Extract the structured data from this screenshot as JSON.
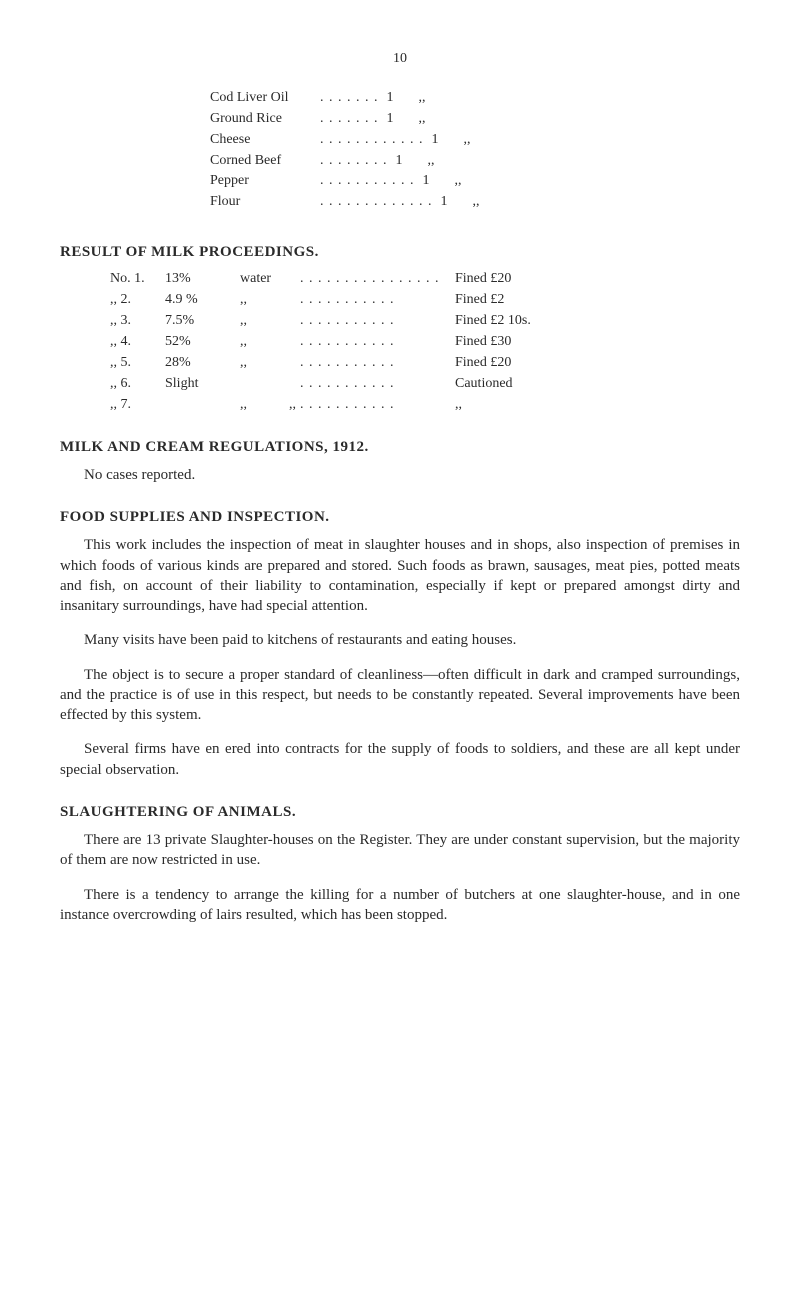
{
  "page_number": "10",
  "top_items": [
    {
      "name": "Cod Liver Oil",
      "dots": ". . . . . . .",
      "qty": "1",
      "ditto": ",,"
    },
    {
      "name": "Ground Rice",
      "dots": ". . . . . . .",
      "qty": "1",
      "ditto": ",,"
    },
    {
      "name": "Cheese",
      "dots": ". . . . . . . . . . . .",
      "qty": "1",
      "ditto": ",,"
    },
    {
      "name": "Corned Beef",
      "dots": ". . . . . . . .",
      "qty": "1",
      "ditto": ",,"
    },
    {
      "name": "Pepper",
      "dots": ". . . . . . . . . . .",
      "qty": "1",
      "ditto": ",,"
    },
    {
      "name": "Flour",
      "dots": ". . . . . . . . . . . . .",
      "qty": "1",
      "ditto": ",,"
    }
  ],
  "sections": {
    "milk_proceedings": {
      "header": "RESULT OF MILK PROCEEDINGS.",
      "rows": [
        {
          "no": "No. 1.",
          "pct": "13%",
          "word": "water",
          "dots": ". . . . . . . . . . . . . . . .",
          "result": "Fined £20"
        },
        {
          "no": ",, 2.",
          "pct": "4.9 %",
          "word": ",,",
          "dots": ". . . . . . . . . . .",
          "result": "Fined £2"
        },
        {
          "no": ",, 3.",
          "pct": "7.5%",
          "word": ",,",
          "dots": ". . . . . . . . . . .",
          "result": "Fined £2 10s."
        },
        {
          "no": ",, 4.",
          "pct": "52%",
          "word": ",,",
          "dots": ". . . . . . . . . . .",
          "result": "Fined £30"
        },
        {
          "no": ",, 5.",
          "pct": "28%",
          "word": ",,",
          "dots": ". . . . . . . . . . .",
          "result": "Fined £20"
        },
        {
          "no": ",, 6.",
          "pct": "Slight",
          "word": "",
          "dots": ". . . . . . . . . . .",
          "result": "Cautioned"
        },
        {
          "no": ",, 7.",
          "pct": "",
          "word": ",,            ,,",
          "dots": ". . . . . . . . . . .",
          "result": ",,"
        }
      ]
    },
    "milk_cream": {
      "header": "MILK AND CREAM REGULATIONS, 1912.",
      "text": "No cases reported."
    },
    "food_supplies": {
      "header": "FOOD SUPPLIES AND INSPECTION.",
      "p1": "This work includes the inspection of meat in slaughter houses and in shops, also inspection of premises in which foods of various kinds are prepared and stored. Such foods as brawn, sausages, meat pies, potted meats and fish, on account of their liability to contamination, especially if kept or prepared amongst dirty and insanitary surroundings, have had special attention.",
      "p2": "Many visits have been paid to kitchens of restaurants and eating houses.",
      "p3": "The object is to secure a proper standard of cleanliness—often difficult in dark and cramped surroundings, and the practice is of use in this respect, but needs to be constantly repeated. Several improvements have been effected by this system.",
      "p4": "Several firms have en ered into contracts for the supply of foods to soldiers, and these are all kept under special observation."
    },
    "slaughtering": {
      "header": "SLAUGHTERING OF ANIMALS.",
      "p1": "There are 13 private Slaughter-houses on the Register. They are under constant supervision, but the majority of them are now restricted in use.",
      "p2": "There is a tendency to arrange the killing for a number of butchers at one slaughter-house, and in one instance overcrowding of lairs resulted, which has been stopped."
    }
  }
}
